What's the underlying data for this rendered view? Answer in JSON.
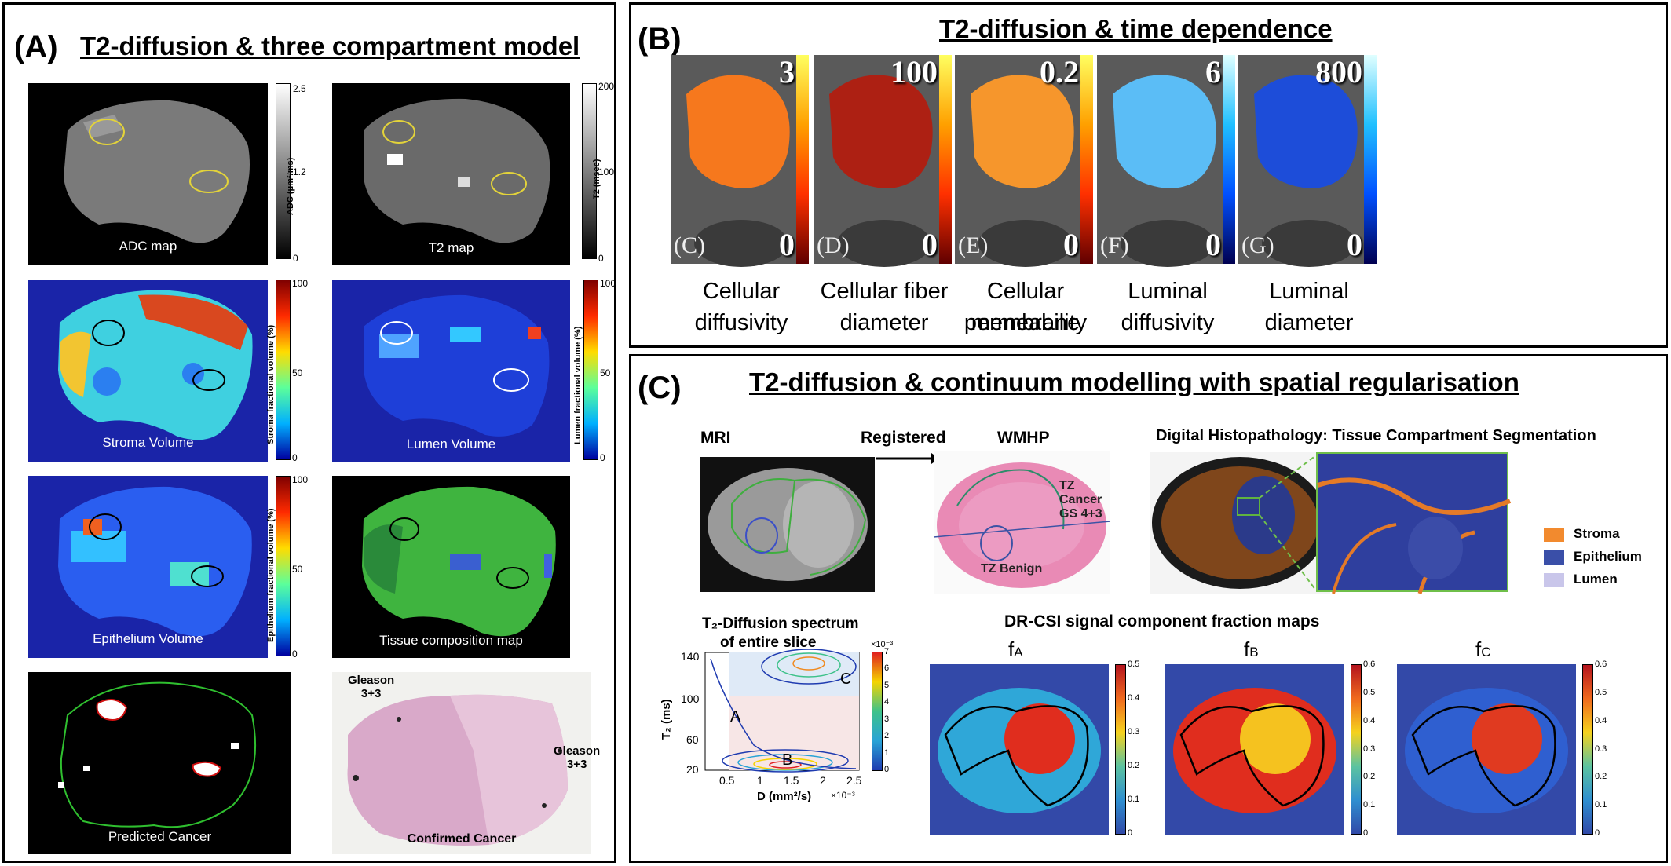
{
  "panelA": {
    "label": "(A)",
    "title": "T2-diffusion & three compartment model",
    "adc": {
      "caption": "ADC map",
      "unit": "ADC (μm²/ms)",
      "ticks": [
        "2.5",
        "1.2",
        "0"
      ]
    },
    "t2": {
      "caption": "T2 map",
      "unit": "T2 (msec)",
      "ticks": [
        "200",
        "100",
        "0"
      ]
    },
    "stroma": {
      "caption": "Stroma Volume",
      "unit": "Stroma fractional volume (%)",
      "ticks": [
        "100",
        "50",
        "0"
      ]
    },
    "lumen": {
      "caption": "Lumen Volume",
      "unit": "Lumen fractional volume (%)",
      "ticks": [
        "100",
        "50",
        "0"
      ]
    },
    "epithelium": {
      "caption": "Epithelium Volume",
      "unit": "Epithelium fractional volume (%)",
      "ticks": [
        "100",
        "50",
        "0"
      ]
    },
    "composition": {
      "caption": "Tissue composition map"
    },
    "predicted": {
      "caption": "Predicted Cancer"
    },
    "confirmed": {
      "caption": "Confirmed Cancer",
      "gleason_left": "Gleason\n3+3",
      "gleason_right": "Gleason\n3+3"
    }
  },
  "panelB": {
    "label": "(B)",
    "title": "T2-diffusion & time dependence",
    "maps": [
      {
        "letter": "(C)",
        "max": "3",
        "min": "0",
        "caption1": "Cellular",
        "caption2": "diffusivity"
      },
      {
        "letter": "(D)",
        "max": "100",
        "min": "0",
        "caption1": "Cellular fiber",
        "caption2": "diameter"
      },
      {
        "letter": "(E)",
        "max": "0.2",
        "min": "0",
        "caption1": "Cellular membrane",
        "caption2": "permeability"
      },
      {
        "letter": "(F)",
        "max": "6",
        "min": "0",
        "caption1": "Luminal",
        "caption2": "diffusivity"
      },
      {
        "letter": "(G)",
        "max": "800",
        "min": "0",
        "caption1": "Luminal",
        "caption2": "diameter"
      }
    ]
  },
  "panelC": {
    "label": "(C)",
    "title": "T2-diffusion & continuum modelling with spatial regularisation",
    "mri": "MRI",
    "registered": "Registered",
    "wmhp": "WMHP",
    "histo": "Digital Histopathology: Tissue Compartment Segmentation",
    "wmhp_tz_cancer": "TZ\nCancer\nGS 4+3",
    "wmhp_tz_benign": "TZ Benign",
    "legend": [
      {
        "label": "Stroma",
        "color": "#f28a2e"
      },
      {
        "label": "Epithelium",
        "color": "#3a4fa8"
      },
      {
        "label": "Lumen",
        "color": "#c9c6ea"
      }
    ],
    "spectrum": {
      "title1": "T₂-Diffusion spectrum",
      "title2": "of entire slice",
      "ylabel": "T₂ (ms)",
      "xlabel": "D (mm²/s)",
      "xexp": "×10⁻³",
      "cbexp": "×10⁻³",
      "xticks": [
        "0.5",
        "1",
        "1.5",
        "2",
        "2.5"
      ],
      "yticks": [
        "140",
        "100",
        "60",
        "20"
      ],
      "cbticks": [
        "7",
        "6",
        "5",
        "4",
        "3",
        "2",
        "1",
        "0"
      ],
      "peaks": [
        "A",
        "B",
        "C"
      ]
    },
    "frac_title": "DR-CSI signal component fraction maps",
    "fmaps": [
      {
        "label": "f",
        "sub": "A",
        "ticks": [
          "0.5",
          "0.4",
          "0.3",
          "0.2",
          "0.1",
          "0"
        ]
      },
      {
        "label": "f",
        "sub": "B",
        "ticks": [
          "0.6",
          "0.5",
          "0.4",
          "0.3",
          "0.2",
          "0.1",
          "0"
        ]
      },
      {
        "label": "f",
        "sub": "C",
        "ticks": [
          "0.6",
          "0.5",
          "0.4",
          "0.3",
          "0.2",
          "0.1",
          "0"
        ]
      }
    ]
  }
}
